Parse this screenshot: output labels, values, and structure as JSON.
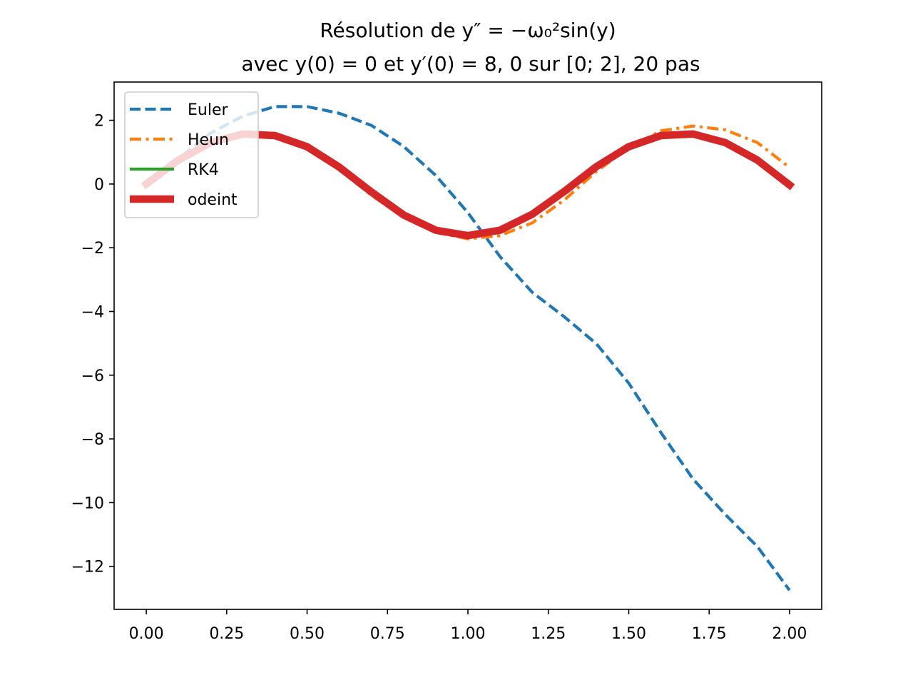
{
  "chart_data": {
    "type": "line",
    "title_line1": "Résolution de  y″ = −ω₀²sin(y)",
    "title_line2": "avec y(0) = 0 et y′(0) = 8, 0 sur [0; 2], 20 pas",
    "xlabel": "",
    "ylabel": "",
    "xlim": [
      -0.1,
      2.1
    ],
    "ylim": [
      -13.35,
      3.2
    ],
    "xticks": [
      0.0,
      0.25,
      0.5,
      0.75,
      1.0,
      1.25,
      1.5,
      1.75,
      2.0
    ],
    "xtick_labels": [
      "0.00",
      "0.25",
      "0.50",
      "0.75",
      "1.00",
      "1.25",
      "1.50",
      "1.75",
      "2.00"
    ],
    "yticks": [
      2,
      0,
      -2,
      -4,
      -6,
      -8,
      -10,
      -12
    ],
    "ytick_labels": [
      "2",
      "0",
      "−2",
      "−4",
      "−6",
      "−8",
      "−10",
      "−12"
    ],
    "grid": false,
    "legend_position": "upper left",
    "x": [
      0.0,
      0.1,
      0.2,
      0.3,
      0.4,
      0.5,
      0.6,
      0.7,
      0.8,
      0.9,
      1.0,
      1.1,
      1.2,
      1.3,
      1.4,
      1.5,
      1.6,
      1.7,
      1.8,
      1.9,
      2.0
    ],
    "series": [
      {
        "name": "Euler",
        "color": "#1f77b4",
        "style": "dashed",
        "values": [
          0.0,
          0.8,
          1.6,
          2.13,
          2.43,
          2.43,
          2.22,
          1.84,
          1.18,
          0.27,
          -0.9,
          -2.28,
          -3.4,
          -4.17,
          -5.02,
          -6.25,
          -7.8,
          -9.26,
          -10.37,
          -11.38,
          -12.75
        ]
      },
      {
        "name": "Heun",
        "color": "#ff7f0e",
        "style": "dashdot",
        "values": [
          0.0,
          0.72,
          1.27,
          1.57,
          1.5,
          1.1,
          0.45,
          -0.35,
          -1.05,
          -1.52,
          -1.72,
          -1.62,
          -1.22,
          -0.5,
          0.4,
          1.13,
          1.67,
          1.82,
          1.7,
          1.3,
          0.52
        ]
      },
      {
        "name": "RK4",
        "color": "#2ca02c",
        "style": "solid",
        "values": [
          0.0,
          0.75,
          1.3,
          1.57,
          1.52,
          1.17,
          0.53,
          -0.25,
          -0.97,
          -1.45,
          -1.62,
          -1.45,
          -0.95,
          -0.23,
          0.55,
          1.17,
          1.52,
          1.57,
          1.3,
          0.75,
          -0.02
        ]
      },
      {
        "name": "odeint",
        "color": "#d62728",
        "style": "solid-thick",
        "values": [
          0.0,
          0.75,
          1.3,
          1.57,
          1.52,
          1.17,
          0.53,
          -0.25,
          -0.97,
          -1.45,
          -1.62,
          -1.45,
          -0.95,
          -0.23,
          0.55,
          1.17,
          1.52,
          1.57,
          1.3,
          0.75,
          -0.03
        ]
      }
    ]
  }
}
